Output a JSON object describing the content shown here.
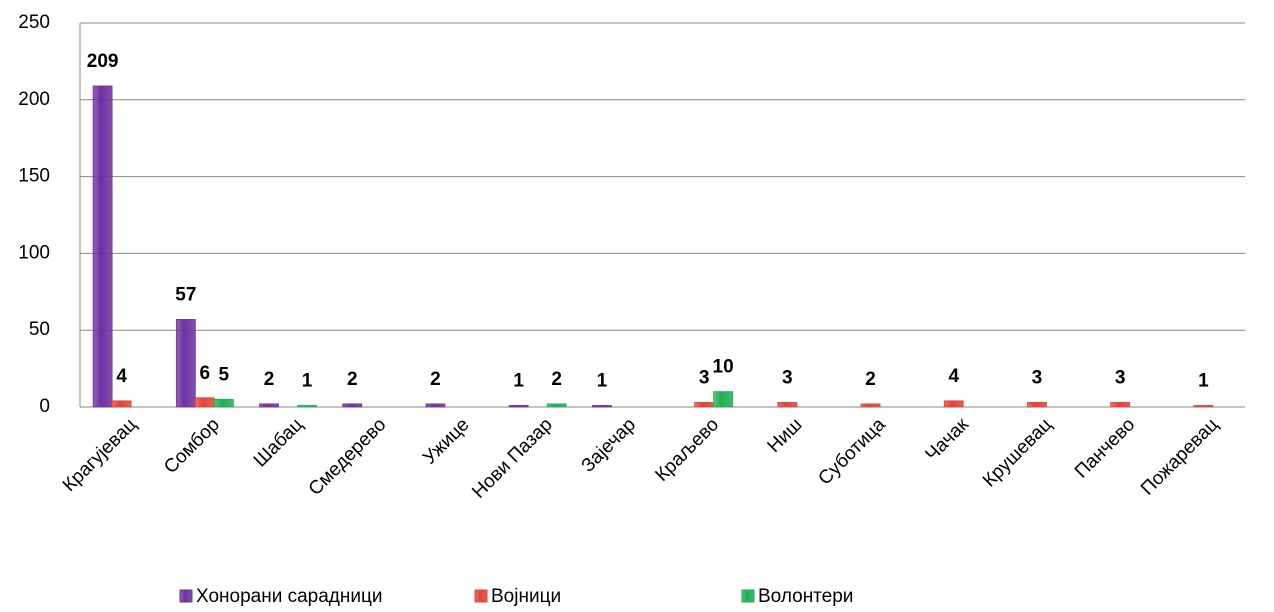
{
  "chart_data": {
    "type": "bar",
    "categories": [
      "Крагујевац",
      "Сомбор",
      "Шабац",
      "Смедерево",
      "Ужице",
      "Нови Пазар",
      "Зајечар",
      "Краљево",
      "Ниш",
      "Суботица",
      "Чачак",
      "Крушевац",
      "Панчево",
      "Пожаревац"
    ],
    "series": [
      {
        "name": "Хонорани сарадници",
        "color": "#7030a0",
        "values": [
          209,
          57,
          2,
          2,
          2,
          1,
          1,
          null,
          null,
          null,
          null,
          null,
          null,
          null
        ]
      },
      {
        "name": "Војници",
        "color": "#e0443c",
        "values": [
          4,
          6,
          null,
          null,
          null,
          null,
          null,
          3,
          3,
          2,
          4,
          3,
          3,
          1
        ]
      },
      {
        "name": "Волонтери",
        "color": "#1fae55",
        "values": [
          null,
          5,
          1,
          null,
          null,
          2,
          null,
          10,
          null,
          null,
          null,
          null,
          null,
          null
        ]
      }
    ],
    "ylim": [
      0,
      250
    ],
    "yticks": [
      0,
      50,
      100,
      150,
      200,
      250
    ],
    "grid": true,
    "legend": "bottom"
  }
}
